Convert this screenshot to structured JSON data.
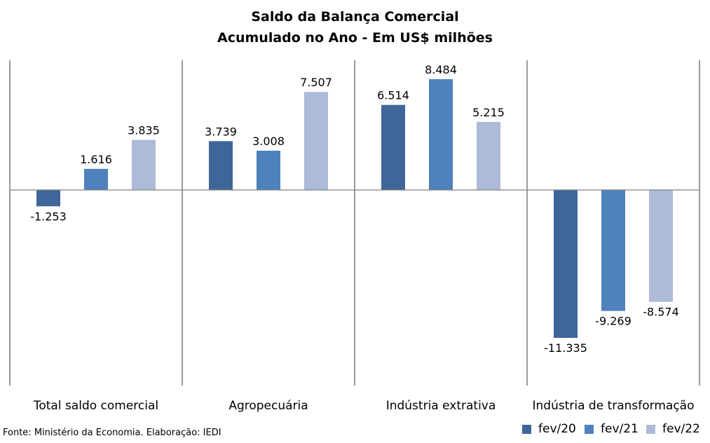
{
  "chart_data": {
    "type": "bar",
    "title": "Saldo da Balança Comercial",
    "subtitle": "Acumulado no Ano - Em US$ milhões",
    "categories": [
      "Total saldo comercial",
      "Agropecuária",
      "Indústria extrativa",
      "Indústria de transformação"
    ],
    "series": [
      {
        "name": "fev/20",
        "color": "#3e6699",
        "values": [
          -1253,
          3739,
          6514,
          -11335
        ],
        "labels": [
          "-1.253",
          "3.739",
          "6.514",
          "-11.335"
        ]
      },
      {
        "name": "fev/21",
        "color": "#4f81bd",
        "values": [
          1616,
          3008,
          8484,
          -9269
        ],
        "labels": [
          "1.616",
          "3.008",
          "8.484",
          "-9.269"
        ]
      },
      {
        "name": "fev/22",
        "color": "#adbbd8",
        "values": [
          3835,
          7507,
          5215,
          -8574
        ],
        "labels": [
          "3.835",
          "7.507",
          "5.215",
          "-8.574"
        ]
      }
    ],
    "ylim": [
      -15000,
      10000
    ],
    "grid": false,
    "legend": "bottom-right"
  },
  "source": "Fonte: Ministério da Economia. Elaboração: IEDI"
}
